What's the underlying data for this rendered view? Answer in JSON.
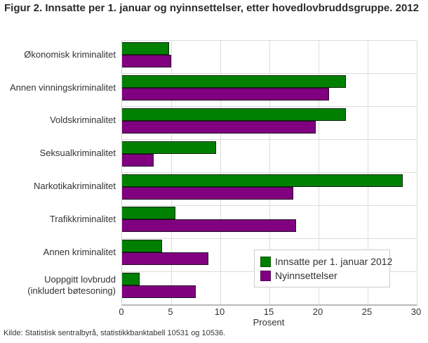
{
  "title": "Figur 2. Innsatte per 1. januar og nyinnsettelser, etter hovedlovbruddsgruppe. 2012",
  "source": "Kilde: Statistisk sentralbyrå, statistikkbanktabell 10531 og 10536.",
  "chart_data": {
    "type": "bar",
    "orientation": "horizontal",
    "title": "Figur 2. Innsatte per 1. januar og nyinnsettelser, etter hovedlovbruddsgruppe. 2012",
    "xlabel": "Prosent",
    "ylabel": "",
    "xlim": [
      0,
      30
    ],
    "xticks": [
      0,
      5,
      10,
      15,
      20,
      25,
      30
    ],
    "grid": true,
    "legend_position": "inside-bottom-right",
    "categories": [
      "Økonomisk kriminalitet",
      "Annen vinningskriminalitet",
      "Voldskriminalitet",
      "Seksualkriminalitet",
      "Narkotikakriminalitet",
      "Trafikkriminalitet",
      "Annen kriminalitet",
      "Uoppgitt lovbrudd\n(inkludert bøtesoning)"
    ],
    "series": [
      {
        "name": "Innsatte per 1. januar 2012",
        "color": "#008000",
        "values": [
          4.8,
          22.8,
          22.8,
          9.6,
          28.6,
          5.4,
          4.1,
          1.8
        ]
      },
      {
        "name": "Nyinnsettelser",
        "color": "#800080",
        "values": [
          5.0,
          21.1,
          19.7,
          3.2,
          17.4,
          17.7,
          8.8,
          7.5
        ]
      }
    ]
  }
}
